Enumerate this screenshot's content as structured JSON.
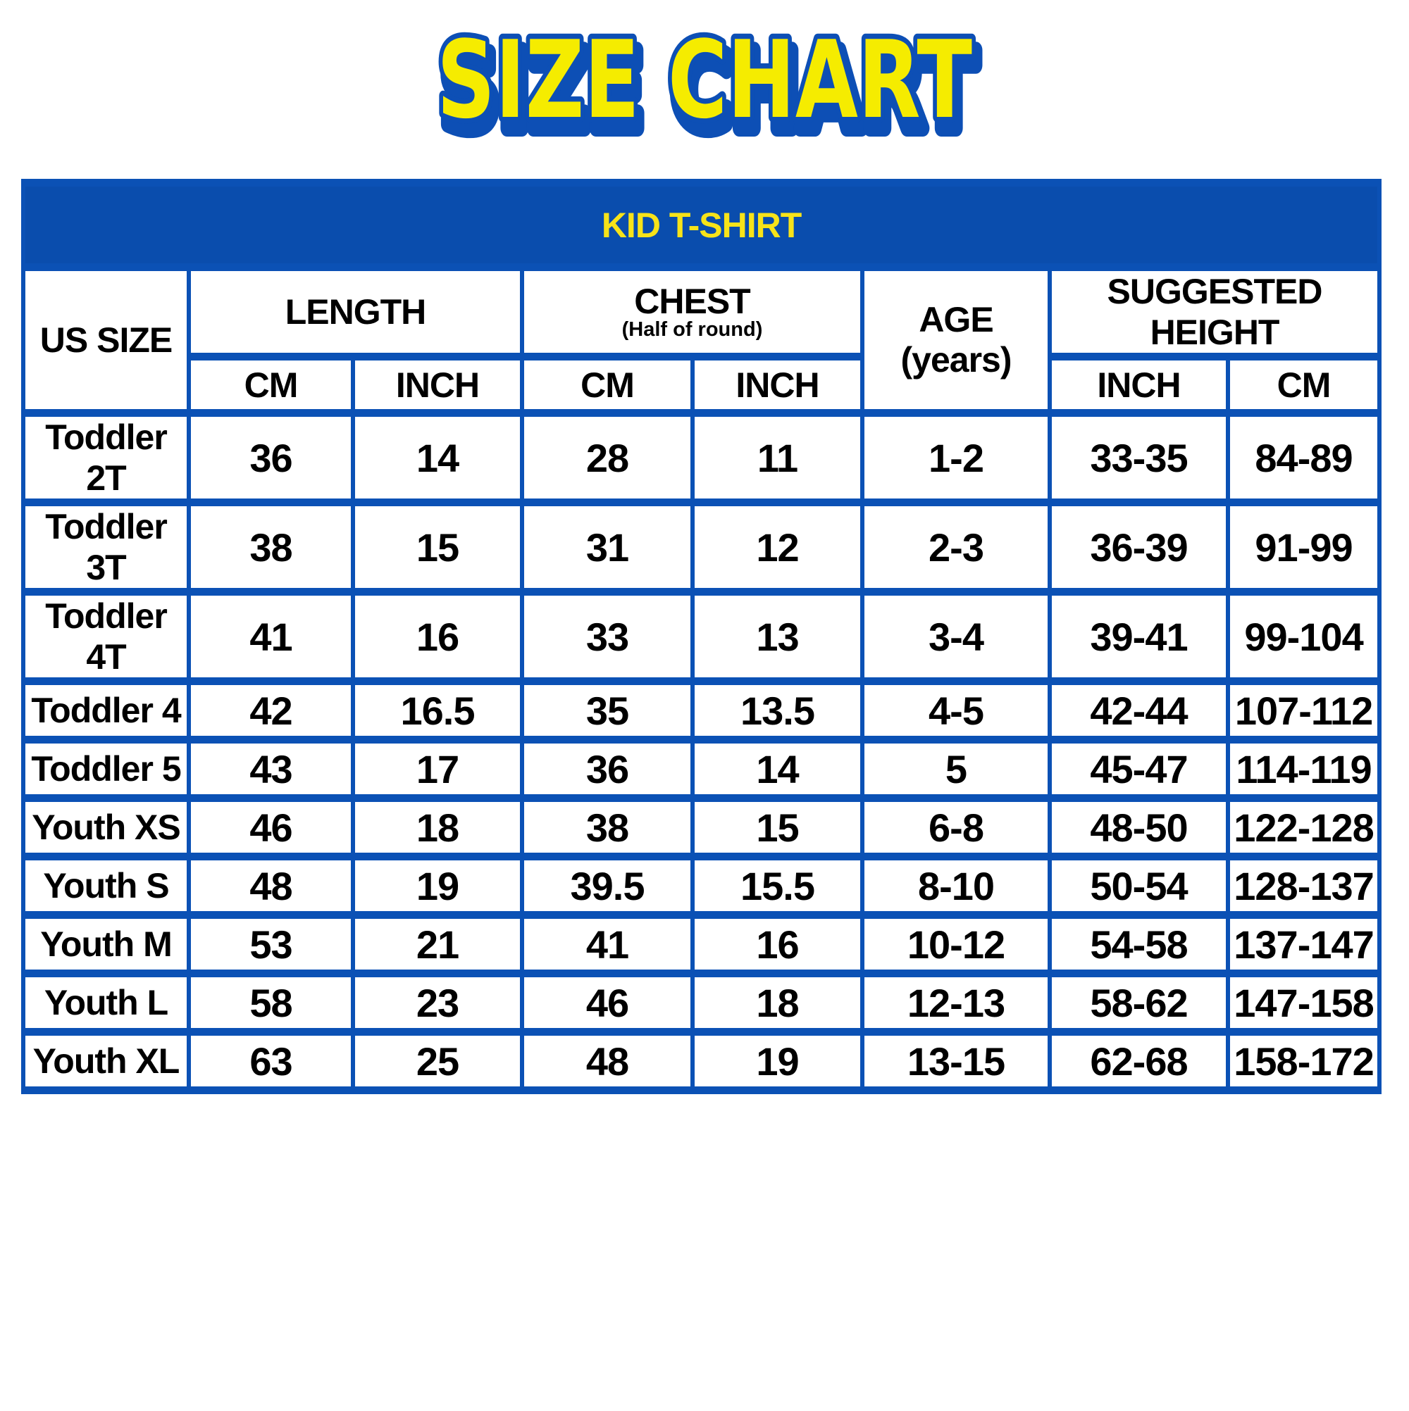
{
  "page_title": "SIZE CHART",
  "colors": {
    "blue_fill": "#0A4DAD",
    "border_blue": "#0B51B5",
    "band_yellow": "#F7E319",
    "title_yellow": "#F5EC00",
    "title_outline_blue": "#0D4FB5",
    "text_black": "#000000"
  },
  "table": {
    "band_title": "KID T-SHIRT",
    "headers": {
      "us_size": "US SIZE",
      "length": "LENGTH",
      "chest": "CHEST",
      "chest_sub": "(Half of round)",
      "age_line1": "AGE",
      "age_line2": "(years)",
      "suggested_height": "SUGGESTED HEIGHT",
      "sub": {
        "length_cm": "CM",
        "length_inch": "INCH",
        "chest_cm": "CM",
        "chest_inch": "INCH",
        "height_inch": "INCH",
        "height_cm": "CM"
      }
    }
  },
  "chart_data": {
    "type": "table",
    "title": "SIZE CHART",
    "subtitle": "KID T-SHIRT",
    "columns": [
      "US SIZE",
      "LENGTH CM",
      "LENGTH INCH",
      "CHEST (Half of round) CM",
      "CHEST (Half of round) INCH",
      "AGE (years)",
      "SUGGESTED HEIGHT INCH",
      "SUGGESTED HEIGHT CM"
    ],
    "rows": [
      [
        "Toddler 2T",
        "36",
        "14",
        "28",
        "11",
        "1-2",
        "33-35",
        "84-89"
      ],
      [
        "Toddler 3T",
        "38",
        "15",
        "31",
        "12",
        "2-3",
        "36-39",
        "91-99"
      ],
      [
        "Toddler 4T",
        "41",
        "16",
        "33",
        "13",
        "3-4",
        "39-41",
        "99-104"
      ],
      [
        "Toddler 4",
        "42",
        "16.5",
        "35",
        "13.5",
        "4-5",
        "42-44",
        "107-112"
      ],
      [
        "Toddler 5",
        "43",
        "17",
        "36",
        "14",
        "5",
        "45-47",
        "114-119"
      ],
      [
        "Youth XS",
        "46",
        "18",
        "38",
        "15",
        "6-8",
        "48-50",
        "122-128"
      ],
      [
        "Youth S",
        "48",
        "19",
        "39.5",
        "15.5",
        "8-10",
        "50-54",
        "128-137"
      ],
      [
        "Youth M",
        "53",
        "21",
        "41",
        "16",
        "10-12",
        "54-58",
        "137-147"
      ],
      [
        "Youth L",
        "58",
        "23",
        "46",
        "18",
        "12-13",
        "58-62",
        "147-158"
      ],
      [
        "Youth XL",
        "63",
        "25",
        "48",
        "19",
        "13-15",
        "62-68",
        "158-172"
      ]
    ]
  }
}
